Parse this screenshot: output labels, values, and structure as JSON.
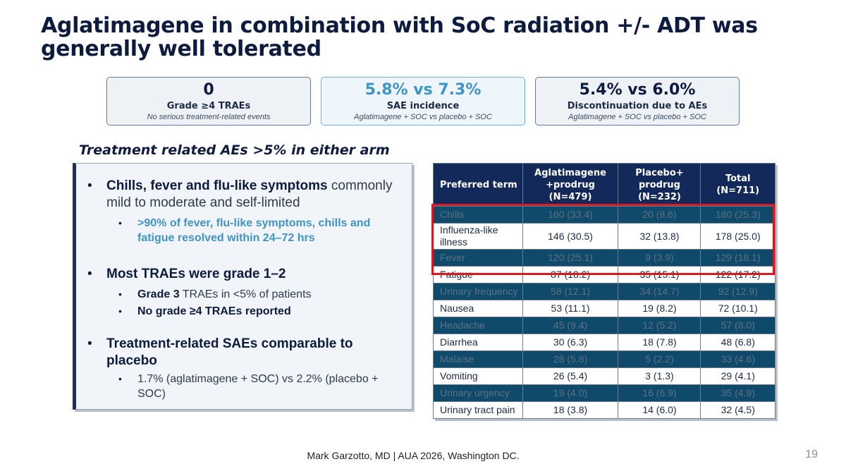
{
  "slide": {
    "title": "Aglatimagene in combination with SoC radiation +/- ADT was generally well tolerated",
    "page_number": "19",
    "footer": "Mark Garzotto, MD |  AUA 2026, Washington DC."
  },
  "stats": [
    {
      "value": "0",
      "label": "Grade ≥4 TRAEs",
      "sub": "No serious treatment-related events"
    },
    {
      "value": "5.8% vs 7.3%",
      "label": "SAE incidence",
      "sub": "Aglatimagene + SOC vs placebo + SOC"
    },
    {
      "value": "5.4% vs 6.0%",
      "label": "Discontinuation due to AEs",
      "sub": "Aglatimagene + SOC vs placebo + SOC"
    }
  ],
  "section_heading": "Treatment related AEs >5% in either arm",
  "bullets": {
    "b1_bold": "Chills, fever and flu-like symptoms",
    "b1_rest": " commonly mild to moderate and self-limited",
    "b1_sub": ">90% of fever, flu-like symptoms, chills and fatigue resolved within 24–72 hrs",
    "b2": "Most TRAEs were grade 1–2",
    "b2_sub1_bold": "Grade 3",
    "b2_sub1_rest": " TRAEs in <5% of patients",
    "b2_sub2": "No grade ≥4 TRAEs reported",
    "b3": "Treatment-related SAEs comparable to placebo",
    "b3_sub": "1.7% (aglatimagene + SOC) vs 2.2% (placebo + SOC)"
  },
  "table": {
    "headers": [
      "Preferred term",
      "Aglatimagene +prodrug (N=479)",
      "Placebo+ prodrug (N=232)",
      "Total (N=711)"
    ],
    "header_lines": {
      "h1": "Preferred term",
      "h2a": "Aglatimagene",
      "h2b": "+prodrug",
      "h2c": "(N=479)",
      "h3a": "Placebo+",
      "h3b": "prodrug",
      "h3c": "(N=232)",
      "h4a": "Total",
      "h4b": "(N=711)"
    },
    "rows": [
      [
        "Chills",
        "160 (33.4)",
        "20 (8.6)",
        "180 (25.3)"
      ],
      [
        "Influenza-like illness",
        "146 (30.5)",
        "32 (13.8)",
        "178 (25.0)"
      ],
      [
        "Fever",
        "120 (25.1)",
        "9 (3.9)",
        "129 (18.1)"
      ],
      [
        "Fatigue",
        "87 (18.2)",
        "35 (15.1)",
        "122 (17.2)"
      ],
      [
        "Urinary frequency",
        "58 (12.1)",
        "34 (14.7)",
        "92 (12.9)"
      ],
      [
        "Nausea",
        "53 (11.1)",
        "19 (8.2)",
        "72 (10.1)"
      ],
      [
        "Headache",
        "45 (9.4)",
        "12 (5.2)",
        "57 (8.0)"
      ],
      [
        "Diarrhea",
        "30 (6.3)",
        "18 (7.8)",
        "48 (6.8)"
      ],
      [
        "Malaise",
        "28 (5.8)",
        "5 (2.2)",
        "33 (4.6)"
      ],
      [
        "Vomiting",
        "26 (5.4)",
        "3 (1.3)",
        "29 (4.1)"
      ],
      [
        "Urinary urgency",
        "19 (4.0)",
        "16 (6.9)",
        "35 (4.9)"
      ],
      [
        "Urinary tract pain",
        "18 (3.8)",
        "14 (6.0)",
        "32 (4.5)"
      ]
    ]
  },
  "colors": {
    "navy": "#0d1b3e",
    "accent_blue": "#3f95c6",
    "table_header": "#13295a",
    "dark_row": "#0f4a6a",
    "highlight_red": "#d71921"
  }
}
